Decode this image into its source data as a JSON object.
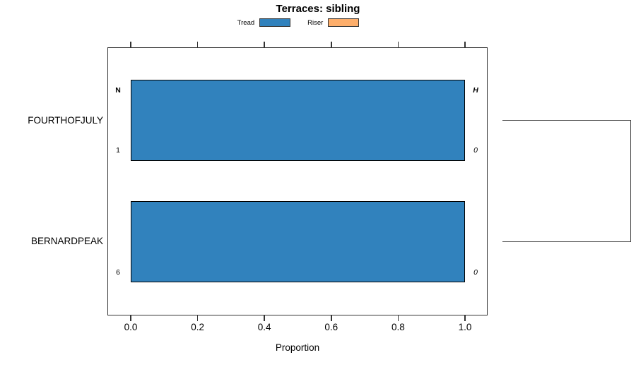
{
  "title": "Terraces: sibling",
  "legend": {
    "items": [
      {
        "label": "Tread",
        "color": "#3182BD"
      },
      {
        "label": "Riser",
        "color": "#FDAE6B"
      }
    ]
  },
  "chart_data": {
    "type": "bar",
    "orientation": "horizontal",
    "title": "Terraces: sibling",
    "xlabel": "Proportion",
    "xlim": [
      0.0,
      1.0
    ],
    "xticks": [
      0.0,
      0.2,
      0.4,
      0.6,
      0.8,
      1.0
    ],
    "xtick_labels": [
      "0.0",
      "0.2",
      "0.4",
      "0.6",
      "0.8",
      "1.0"
    ],
    "grid": false,
    "legend_position": "top-center",
    "categories": [
      "FOURTHOFJULY",
      "BERNARDPEAK"
    ],
    "series": [
      {
        "name": "Tread",
        "color": "#3182BD",
        "values": [
          1.0,
          1.0
        ]
      },
      {
        "name": "Riser",
        "color": "#FDAE6B",
        "values": [
          0.0,
          0.0
        ]
      }
    ],
    "annotations": {
      "left_header": "N",
      "right_header": "H",
      "left_values": [
        "1",
        "6"
      ],
      "right_values": [
        "0",
        "0"
      ]
    },
    "sibling_bracket": {
      "connects_rows": [
        0,
        1
      ]
    }
  },
  "colors": {
    "bar_fill": "#3182BD",
    "riser_fill": "#FDAE6B",
    "bar_border": "#000000",
    "axis": "#333333",
    "bracket": "#444444",
    "background": "#FFFFFF"
  }
}
